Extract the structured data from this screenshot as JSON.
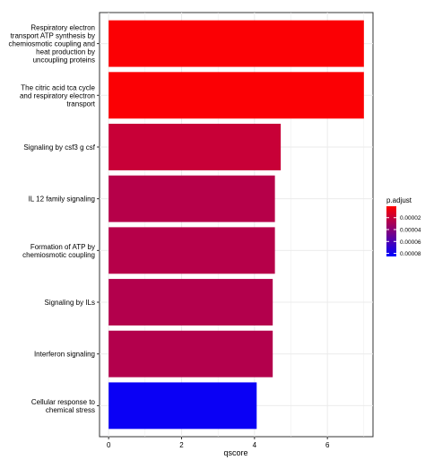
{
  "chart_data": {
    "type": "bar",
    "orientation": "horizontal",
    "categories": [
      [
        "Respiratory electron",
        "transport ATP synthesis by",
        "chemiosmotic coupling and",
        "heat production by",
        "uncoupling proteins"
      ],
      [
        "The citric acid tca cycle",
        "and respiratory electron",
        "transport"
      ],
      [
        "Signaling by csf3 g csf"
      ],
      [
        "IL 12 family signaling"
      ],
      [
        "Formation of ATP by",
        "chemiosmotic coupling"
      ],
      [
        "Signaling by ILs"
      ],
      [
        "Interferon signaling"
      ],
      [
        "Cellular response to",
        "chemical stress"
      ]
    ],
    "values": [
      7.0,
      7.0,
      4.72,
      4.56,
      4.56,
      4.5,
      4.5,
      4.06
    ],
    "p_adjust": [
      2e-06,
      2e-06,
      1.9e-05,
      2.5e-05,
      2.5e-05,
      2.6e-05,
      2.6e-05,
      8.2e-05
    ],
    "xlabel": "qscore",
    "ylabel": "",
    "xlim": [
      -0.25,
      7.25
    ],
    "xticks": [
      0,
      2,
      4,
      6
    ],
    "grid": true,
    "legend": {
      "title": "p.adjust",
      "position": "right",
      "ticks": [
        2e-05,
        4e-05,
        6e-05,
        8e-05
      ],
      "tick_labels": [
        "0.00002",
        "0.00004",
        "0.00006",
        "0.00008"
      ],
      "range": [
        8e-07,
        8.52e-05
      ],
      "color_low": "#ff0000",
      "color_high": "#0000ff"
    }
  }
}
